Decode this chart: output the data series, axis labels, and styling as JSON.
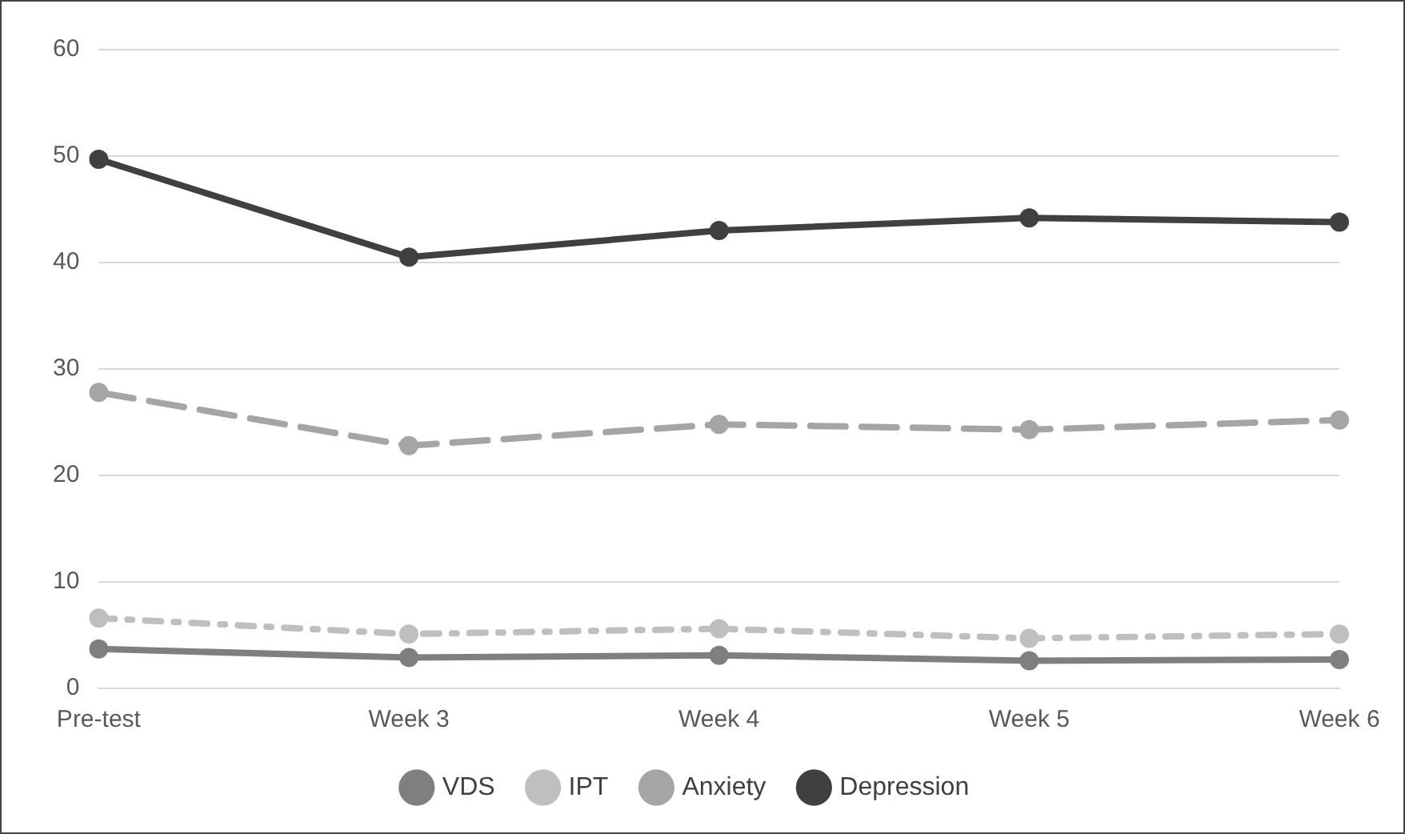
{
  "chart_data": {
    "type": "line",
    "categories": [
      "Pre-test",
      "Week 3",
      "Week 4",
      "Week 5",
      "Week 6"
    ],
    "series": [
      {
        "name": "VDS",
        "color": "#7f7f7f",
        "line_style": "solid",
        "values": [
          3.7,
          2.9,
          3.1,
          2.6,
          2.7
        ]
      },
      {
        "name": "IPT",
        "color": "#bfbfbf",
        "line_style": "dotted",
        "values": [
          6.6,
          5.1,
          5.6,
          4.7,
          5.1
        ]
      },
      {
        "name": "Anxiety",
        "color": "#a5a5a5",
        "line_style": "dashed",
        "values": [
          27.8,
          22.8,
          24.8,
          24.3,
          25.2
        ]
      },
      {
        "name": "Depression",
        "color": "#404040",
        "line_style": "solid",
        "values": [
          49.7,
          40.5,
          43,
          44.2,
          43.8
        ]
      }
    ],
    "ylim": [
      0,
      60
    ],
    "yticks": [
      0,
      10,
      20,
      30,
      40,
      50,
      60
    ],
    "grid": "y",
    "legend": "bottom",
    "marker": "circle"
  }
}
